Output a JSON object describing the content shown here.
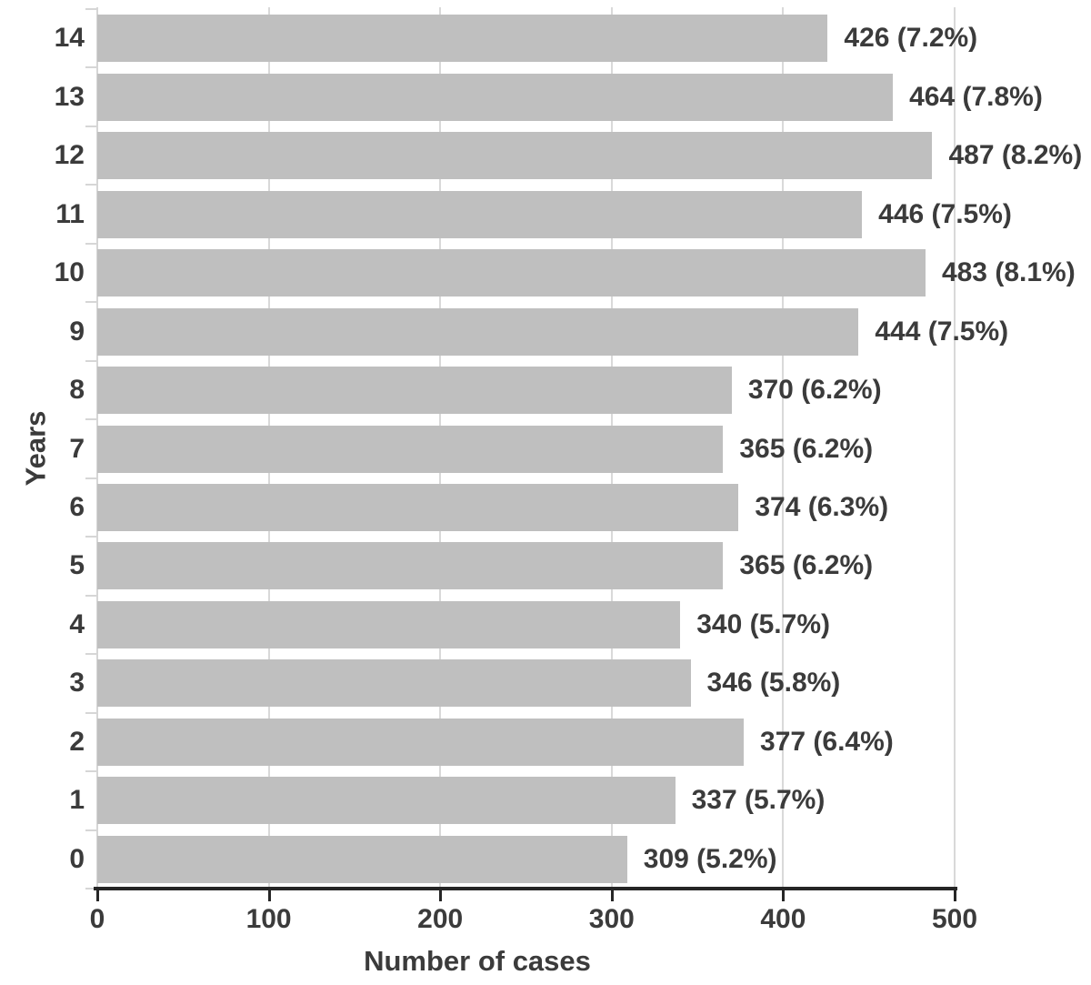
{
  "chart_data": {
    "type": "bar",
    "orientation": "horizontal",
    "xlabel": "Number of cases",
    "ylabel": "Years",
    "xlim": [
      0,
      500
    ],
    "xticks": [
      "0",
      "100",
      "200",
      "300",
      "400",
      "500"
    ],
    "grid": "vertical gridlines on",
    "legend": "none",
    "categories": [
      "14",
      "13",
      "12",
      "11",
      "10",
      "9",
      "8",
      "7",
      "6",
      "5",
      "4",
      "3",
      "2",
      "1",
      "0"
    ],
    "values": [
      426,
      464,
      487,
      446,
      483,
      444,
      370,
      365,
      374,
      365,
      340,
      346,
      377,
      337,
      309
    ],
    "bar_labels": [
      "426 (7.2%)",
      "464 (7.8%)",
      "487 (8.2%)",
      "446 (7.5%)",
      "483 (8.1%)",
      "444 (7.5%)",
      "370 (6.2%)",
      "365 (6.2%)",
      "374 (6.3%)",
      "365 (6.2%)",
      "340 (5.7%)",
      "346 (5.8%)",
      "377 (6.4%)",
      "337 (5.7%)",
      "309 (5.2%)"
    ]
  },
  "colors": {
    "bar": "#bfbfbf",
    "gridline": "#d9d9d9",
    "axis_line_dark": "#262626",
    "axis_line_light": "#d6d6d6",
    "text": "#3b3b3b",
    "background": "#ffffff"
  }
}
